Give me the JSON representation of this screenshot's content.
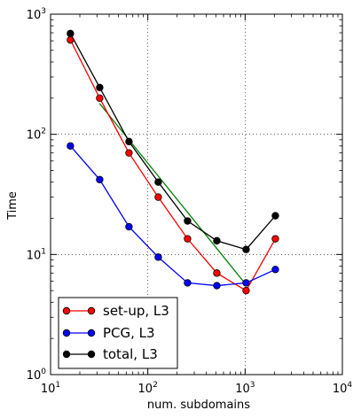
{
  "chart_data": {
    "type": "line",
    "xscale": "log",
    "yscale": "log",
    "xlabel": "num. subdomains",
    "ylabel": "Time",
    "xlim": [
      10,
      10000
    ],
    "ylim": [
      1,
      1000
    ],
    "grid": true,
    "legend_position": "bottom-left",
    "x_ticks": [
      {
        "base": "10",
        "exp": "1",
        "value": 10
      },
      {
        "base": "10",
        "exp": "2",
        "value": 100
      },
      {
        "base": "10",
        "exp": "3",
        "value": 1000
      },
      {
        "base": "10",
        "exp": "4",
        "value": 10000
      }
    ],
    "y_ticks": [
      {
        "base": "10",
        "exp": "0",
        "value": 1
      },
      {
        "base": "10",
        "exp": "1",
        "value": 10
      },
      {
        "base": "10",
        "exp": "2",
        "value": 100
      },
      {
        "base": "10",
        "exp": "3",
        "value": 1000
      }
    ],
    "series": [
      {
        "name": "set-up, L3",
        "color": "#ff0000",
        "x": [
          16,
          32,
          64,
          128,
          256,
          512,
          1024,
          2048
        ],
        "y": [
          610,
          200,
          70,
          30,
          13.5,
          7,
          5,
          13.5
        ]
      },
      {
        "name": "PCG, L3",
        "color": "#0000ff",
        "x": [
          16,
          32,
          64,
          128,
          256,
          512,
          1024,
          2048
        ],
        "y": [
          80,
          42,
          17,
          9.5,
          5.8,
          5.5,
          5.8,
          7.5
        ]
      },
      {
        "name": "total, L3",
        "color": "#000000",
        "x": [
          16,
          32,
          64,
          128,
          256,
          512,
          1024,
          2048
        ],
        "y": [
          690,
          245,
          87,
          40,
          19,
          13,
          11,
          21
        ]
      }
    ],
    "reference_line": {
      "color": "#008000",
      "x": [
        32,
        1024
      ],
      "y": [
        180,
        5.6
      ]
    }
  }
}
